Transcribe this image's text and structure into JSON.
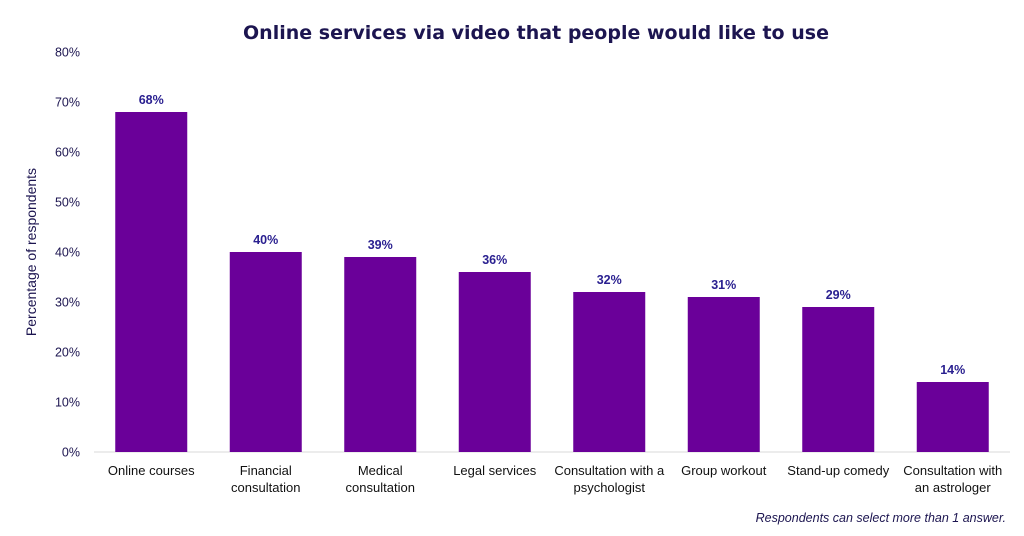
{
  "chart_data": {
    "type": "bar",
    "title": "Online services via video that people would like to use",
    "ylabel": "Percentage of respondents",
    "xlabel": "",
    "ylim": [
      0,
      80
    ],
    "yticks": [
      "0%",
      "10%",
      "20%",
      "30%",
      "40%",
      "50%",
      "60%",
      "70%",
      "80%"
    ],
    "categories": [
      [
        "Online courses"
      ],
      [
        "Financial",
        "consultation"
      ],
      [
        "Medical",
        "consultation"
      ],
      [
        "Legal services"
      ],
      [
        "Consultation with a",
        "psychologist"
      ],
      [
        "Group workout"
      ],
      [
        "Stand-up comedy"
      ],
      [
        "Consultation with",
        "an astrologer"
      ]
    ],
    "values": [
      68,
      40,
      39,
      36,
      32,
      31,
      29,
      14
    ],
    "data_labels": [
      "68%",
      "40%",
      "39%",
      "36%",
      "32%",
      "31%",
      "29%",
      "14%"
    ],
    "bar_color": "#6a0099",
    "grid": false,
    "legend": "none",
    "footnote": "Respondents can select more than 1 answer."
  }
}
